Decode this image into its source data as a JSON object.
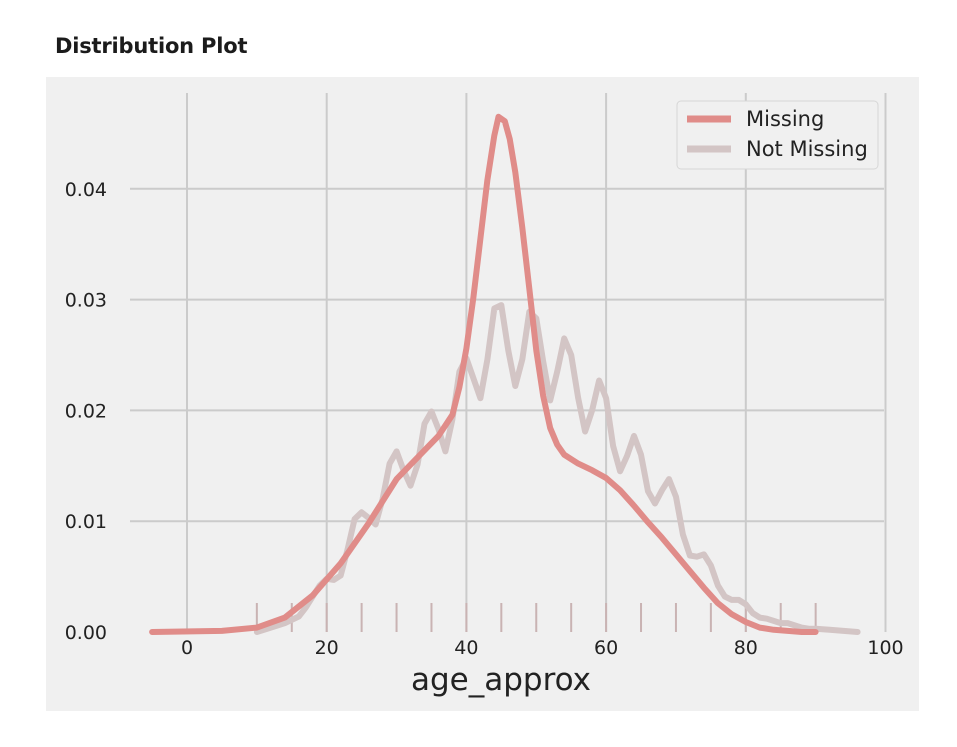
{
  "page": {
    "title": "Distribution Plot"
  },
  "chart_data": {
    "type": "line",
    "title": "",
    "xlabel": "age_approx",
    "ylabel": "",
    "xlim": [
      -5,
      100
    ],
    "ylim": [
      0,
      0.047
    ],
    "grid": true,
    "legend_position": "top-right",
    "x_ticks": [
      0,
      20,
      40,
      60,
      80,
      100
    ],
    "x_tick_labels": [
      "0",
      "20",
      "40",
      "60",
      "80",
      "100"
    ],
    "y_ticks": [
      0,
      0.01,
      0.02,
      0.03,
      0.04
    ],
    "y_tick_labels": [
      "0.00",
      "0.01",
      "0.02",
      "0.03",
      "0.04"
    ],
    "rug_ticks": [
      10,
      15,
      20,
      25,
      30,
      35,
      40,
      45,
      50,
      55,
      60,
      65,
      70,
      75,
      80,
      85,
      90
    ],
    "rug_color": "#c9b3b3",
    "series": [
      {
        "name": "Missing",
        "color": "#e08c89",
        "x": [
          -5,
          5,
          10,
          14,
          18,
          22,
          26,
          30,
          34,
          36,
          38,
          39,
          40,
          41,
          42,
          43,
          44,
          44.6,
          45.5,
          46.2,
          47,
          48,
          49,
          50,
          51,
          52,
          53,
          54,
          56,
          58,
          60,
          62,
          64,
          66,
          68,
          70,
          72,
          74,
          76,
          78,
          80,
          82,
          84,
          86,
          88,
          90
        ],
        "y": [
          0.0,
          0.0001,
          0.0004,
          0.0013,
          0.0033,
          0.0062,
          0.0098,
          0.0138,
          0.0164,
          0.0177,
          0.0196,
          0.0221,
          0.0256,
          0.0302,
          0.0355,
          0.0408,
          0.0448,
          0.0465,
          0.0461,
          0.0445,
          0.0415,
          0.0365,
          0.031,
          0.0254,
          0.0213,
          0.0184,
          0.0169,
          0.016,
          0.0152,
          0.0146,
          0.0139,
          0.0128,
          0.0114,
          0.0099,
          0.0085,
          0.007,
          0.0055,
          0.004,
          0.0026,
          0.0016,
          0.0009,
          0.0004,
          0.0002,
          0.0001,
          0.0,
          0.0
        ]
      },
      {
        "name": "Not Missing",
        "color": "#d3c5c5",
        "x": [
          10,
          12,
          14,
          16,
          17,
          18,
          19,
          20,
          21,
          22,
          23,
          24,
          25,
          26,
          27,
          28,
          29,
          30,
          31,
          32,
          33,
          34,
          35,
          36,
          37,
          38,
          39,
          40,
          41,
          42,
          43,
          44,
          45,
          46,
          47,
          48,
          49,
          50,
          51,
          52,
          53,
          54,
          55,
          56,
          57,
          58,
          59,
          60,
          61,
          62,
          63,
          64,
          65,
          66,
          67,
          68,
          69,
          70,
          71,
          72,
          73,
          74,
          75,
          76,
          77,
          78,
          79,
          80,
          81,
          82,
          83,
          84,
          85,
          86,
          87,
          88,
          89,
          90,
          92,
          94,
          96
        ],
        "y": [
          0.0,
          0.0004,
          0.0008,
          0.0014,
          0.0022,
          0.0032,
          0.0042,
          0.0048,
          0.0047,
          0.0051,
          0.0075,
          0.0102,
          0.0108,
          0.0103,
          0.0097,
          0.012,
          0.0152,
          0.0163,
          0.0146,
          0.0132,
          0.0151,
          0.0188,
          0.0199,
          0.0183,
          0.0163,
          0.0192,
          0.0235,
          0.0247,
          0.0229,
          0.0211,
          0.0246,
          0.0292,
          0.0295,
          0.0254,
          0.0222,
          0.0246,
          0.0289,
          0.0283,
          0.0244,
          0.0209,
          0.0235,
          0.0265,
          0.025,
          0.0211,
          0.0181,
          0.02,
          0.0227,
          0.0211,
          0.0168,
          0.0145,
          0.0159,
          0.0177,
          0.016,
          0.0127,
          0.0116,
          0.0128,
          0.0138,
          0.0122,
          0.0088,
          0.0069,
          0.0068,
          0.007,
          0.006,
          0.0042,
          0.0032,
          0.0029,
          0.0029,
          0.0025,
          0.0017,
          0.0013,
          0.0012,
          0.001,
          0.0008,
          0.0008,
          0.0006,
          0.0004,
          0.0003,
          0.0003,
          0.0002,
          0.0001,
          0.0
        ]
      }
    ]
  }
}
